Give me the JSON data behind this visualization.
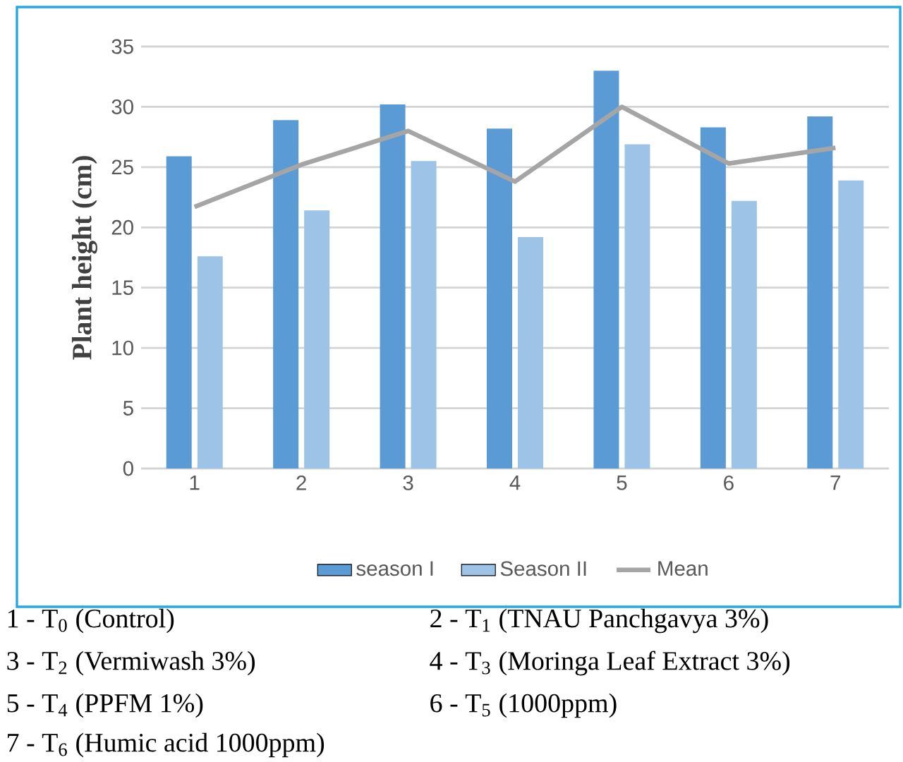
{
  "chart_data": {
    "type": "bar",
    "ylabel": "Plant height (cm)",
    "categories": [
      "1",
      "2",
      "3",
      "4",
      "5",
      "6",
      "7"
    ],
    "series": [
      {
        "name": "season I",
        "color": "#5b9bd5",
        "values": [
          25.9,
          28.9,
          30.2,
          28.2,
          33.0,
          28.3,
          29.2
        ]
      },
      {
        "name": "Season II",
        "color": "#9dc3e6",
        "values": [
          17.6,
          21.4,
          25.5,
          19.2,
          26.9,
          22.2,
          23.9
        ]
      },
      {
        "name": "Mean",
        "type": "line",
        "color": "#a5a5a5",
        "marker": "none",
        "line_style": "solid",
        "values": [
          21.7,
          25.2,
          28.0,
          23.8,
          30.0,
          25.3,
          26.6
        ]
      }
    ],
    "ylim": [
      0,
      35
    ],
    "yticks": [
      0,
      5,
      10,
      15,
      20,
      25,
      30,
      35
    ],
    "grid": "y",
    "legend": "bottom",
    "annotations": [
      "1 - T$_{0}$ (Control)",
      "2 - T$_{1}$ (TNAU Panchgavya 3%)",
      "3 - T$_{2}$ (Vermiwash 3%)",
      "4 - T$_{3}$ (Moringa Leaf Extract 3%)",
      "5 - T$_{4}$ (PPFM 1%)",
      "6 - T$_{5}$ (1000ppm)",
      "7 - T$_{6}$ (Humic acid 1000ppm)"
    ]
  }
}
